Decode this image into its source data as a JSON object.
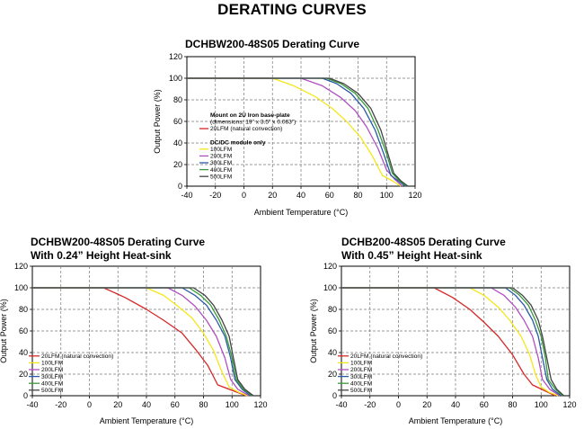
{
  "page": {
    "title": "DERATING CURVES"
  },
  "chart_data": [
    {
      "type": "line",
      "title_lines": [
        "DCHBW200-48S05 Derating Curve"
      ],
      "xlabel": "Ambient Temperature (°C)",
      "ylabel": "Output Power (%)",
      "xlim": [
        -40,
        120
      ],
      "ylim": [
        0,
        120
      ],
      "xticks": [
        -40,
        -20,
        0,
        20,
        40,
        60,
        80,
        100,
        120
      ],
      "yticks": [
        0,
        20,
        40,
        60,
        80,
        100,
        120
      ],
      "grid": true,
      "legend_position": "inside-center",
      "legend_lines": [
        {
          "text": "Mount on 2U Iron base-plate",
          "bold": true
        },
        {
          "text": "(dimensions: 19\" x 3.5\" x 0.063\")",
          "bold": false
        },
        {
          "text": "20LFM (natural convection)",
          "bold": false,
          "series": 0
        },
        {
          "text": "",
          "bold": false
        },
        {
          "text": "DC/DC module only",
          "bold": true
        },
        {
          "text": "100LFM",
          "bold": false,
          "series": 1
        },
        {
          "text": "200LFM",
          "bold": false,
          "series": 2
        },
        {
          "text": "300LFM",
          "bold": false,
          "series": 3
        },
        {
          "text": "400LFM",
          "bold": false,
          "series": 4
        },
        {
          "text": "500LFM",
          "bold": false,
          "series": 5
        }
      ],
      "series": [
        {
          "name": "20LFM (natural convection)",
          "color": "#d62728",
          "points": [
            [
              -40,
              100
            ],
            [
              20,
              100
            ]
          ]
        },
        {
          "name": "100LFM",
          "color": "#f5e61a",
          "points": [
            [
              -40,
              100
            ],
            [
              20,
              100
            ],
            [
              35,
              93
            ],
            [
              50,
              83
            ],
            [
              62,
              72
            ],
            [
              72,
              60
            ],
            [
              82,
              45
            ],
            [
              90,
              28
            ],
            [
              97,
              10
            ],
            [
              104,
              5
            ],
            [
              110,
              0
            ]
          ]
        },
        {
          "name": "200LFM",
          "color": "#b04fc0",
          "points": [
            [
              -40,
              100
            ],
            [
              40,
              100
            ],
            [
              55,
              93
            ],
            [
              68,
              82
            ],
            [
              78,
              70
            ],
            [
              86,
              55
            ],
            [
              94,
              35
            ],
            [
              100,
              15
            ],
            [
              106,
              6
            ],
            [
              111,
              0
            ]
          ]
        },
        {
          "name": "300LFM",
          "color": "#2a5aa8",
          "points": [
            [
              -40,
              100
            ],
            [
              55,
              100
            ],
            [
              65,
              95
            ],
            [
              75,
              86
            ],
            [
              84,
              72
            ],
            [
              92,
              52
            ],
            [
              98,
              30
            ],
            [
              103,
              10
            ],
            [
              108,
              5
            ],
            [
              113,
              0
            ]
          ]
        },
        {
          "name": "400LFM",
          "color": "#3a9a3a",
          "points": [
            [
              -40,
              100
            ],
            [
              58,
              100
            ],
            [
              68,
              95
            ],
            [
              78,
              86
            ],
            [
              87,
              72
            ],
            [
              94,
              52
            ],
            [
              100,
              30
            ],
            [
              104,
              12
            ],
            [
              109,
              5
            ],
            [
              114,
              0
            ]
          ]
        },
        {
          "name": "500LFM",
          "color": "#444444",
          "points": [
            [
              -40,
              100
            ],
            [
              60,
              100
            ],
            [
              70,
              95
            ],
            [
              80,
              86
            ],
            [
              89,
              72
            ],
            [
              96,
              52
            ],
            [
              101,
              30
            ],
            [
              105,
              12
            ],
            [
              110,
              5
            ],
            [
              115,
              0
            ]
          ]
        }
      ]
    },
    {
      "type": "line",
      "title_lines": [
        "DCHBW200-48S05 Derating Curve",
        "With 0.24” Height Heat-sink"
      ],
      "xlabel": "Ambient Temperature (°C)",
      "ylabel": "Output Power (%)",
      "xlim": [
        -40,
        120
      ],
      "ylim": [
        0,
        120
      ],
      "xticks": [
        -40,
        -20,
        0,
        20,
        40,
        60,
        80,
        100,
        120
      ],
      "yticks": [
        0,
        20,
        40,
        60,
        80,
        100,
        120
      ],
      "grid": true,
      "legend_position": "bottom-left",
      "legend_lines": [
        {
          "text": "20LFM (natural convection)",
          "bold": false,
          "series": 0
        },
        {
          "text": "100LFM",
          "bold": false,
          "series": 1
        },
        {
          "text": "200LFM",
          "bold": false,
          "series": 2
        },
        {
          "text": "300LFM",
          "bold": false,
          "series": 3
        },
        {
          "text": "400LFM",
          "bold": false,
          "series": 4
        },
        {
          "text": "500LFM",
          "bold": false,
          "series": 5
        }
      ],
      "series": [
        {
          "name": "20LFM (natural convection)",
          "color": "#d62728",
          "points": [
            [
              -40,
              100
            ],
            [
              10,
              100
            ],
            [
              25,
              91
            ],
            [
              40,
              80
            ],
            [
              52,
              70
            ],
            [
              65,
              58
            ],
            [
              75,
              42
            ],
            [
              83,
              28
            ],
            [
              90,
              10
            ],
            [
              100,
              5
            ],
            [
              110,
              0
            ]
          ]
        },
        {
          "name": "100LFM",
          "color": "#f5e61a",
          "points": [
            [
              -40,
              100
            ],
            [
              40,
              100
            ],
            [
              52,
              93
            ],
            [
              62,
              83
            ],
            [
              72,
              72
            ],
            [
              80,
              58
            ],
            [
              87,
              42
            ],
            [
              93,
              22
            ],
            [
              98,
              8
            ],
            [
              105,
              3
            ],
            [
              111,
              0
            ]
          ]
        },
        {
          "name": "200LFM",
          "color": "#b04fc0",
          "points": [
            [
              -40,
              100
            ],
            [
              55,
              100
            ],
            [
              65,
              93
            ],
            [
              74,
              83
            ],
            [
              82,
              70
            ],
            [
              89,
              55
            ],
            [
              95,
              35
            ],
            [
              99,
              15
            ],
            [
              104,
              6
            ],
            [
              112,
              0
            ]
          ]
        },
        {
          "name": "300LFM",
          "color": "#2a5aa8",
          "points": [
            [
              -40,
              100
            ],
            [
              65,
              100
            ],
            [
              74,
              93
            ],
            [
              82,
              84
            ],
            [
              89,
              70
            ],
            [
              95,
              55
            ],
            [
              99,
              35
            ],
            [
              102,
              15
            ],
            [
              107,
              6
            ],
            [
              113,
              0
            ]
          ]
        },
        {
          "name": "400LFM",
          "color": "#3a9a3a",
          "points": [
            [
              -40,
              100
            ],
            [
              70,
              100
            ],
            [
              78,
              93
            ],
            [
              85,
              84
            ],
            [
              91,
              70
            ],
            [
              96,
              55
            ],
            [
              100,
              35
            ],
            [
              103,
              15
            ],
            [
              108,
              6
            ],
            [
              114,
              0
            ]
          ]
        },
        {
          "name": "500LFM",
          "color": "#444444",
          "points": [
            [
              -40,
              100
            ],
            [
              73,
              100
            ],
            [
              81,
              93
            ],
            [
              87,
              84
            ],
            [
              93,
              70
            ],
            [
              98,
              55
            ],
            [
              101,
              35
            ],
            [
              104,
              15
            ],
            [
              109,
              6
            ],
            [
              115,
              0
            ]
          ]
        }
      ]
    },
    {
      "type": "line",
      "title_lines": [
        "DCHB200-48S05 Derating Curve",
        "With 0.45” Height Heat-sink"
      ],
      "xlabel": "Ambient Temperature (°C)",
      "ylabel": "Output Power (%)",
      "xlim": [
        -40,
        120
      ],
      "ylim": [
        0,
        120
      ],
      "xticks": [
        -40,
        -20,
        0,
        20,
        40,
        60,
        80,
        100,
        120
      ],
      "yticks": [
        0,
        20,
        40,
        60,
        80,
        100,
        120
      ],
      "grid": true,
      "legend_position": "bottom-left",
      "legend_lines": [
        {
          "text": "20LFM (natural convection)",
          "bold": false,
          "series": 0
        },
        {
          "text": "100LFM",
          "bold": false,
          "series": 1
        },
        {
          "text": "200LFM",
          "bold": false,
          "series": 2
        },
        {
          "text": "300LFM",
          "bold": false,
          "series": 3
        },
        {
          "text": "400LFM",
          "bold": false,
          "series": 4
        },
        {
          "text": "500LFM",
          "bold": false,
          "series": 5
        }
      ],
      "series": [
        {
          "name": "20LFM (natural convection)",
          "color": "#d62728",
          "points": [
            [
              -40,
              100
            ],
            [
              25,
              100
            ],
            [
              38,
              91
            ],
            [
              50,
              80
            ],
            [
              60,
              68
            ],
            [
              70,
              55
            ],
            [
              80,
              38
            ],
            [
              88,
              20
            ],
            [
              94,
              10
            ],
            [
              102,
              5
            ],
            [
              110,
              0
            ]
          ]
        },
        {
          "name": "100LFM",
          "color": "#f5e61a",
          "points": [
            [
              -40,
              100
            ],
            [
              50,
              100
            ],
            [
              60,
              93
            ],
            [
              70,
              82
            ],
            [
              78,
              70
            ],
            [
              86,
              55
            ],
            [
              92,
              38
            ],
            [
              96,
              20
            ],
            [
              100,
              8
            ],
            [
              106,
              3
            ],
            [
              112,
              0
            ]
          ]
        },
        {
          "name": "200LFM",
          "color": "#b04fc0",
          "points": [
            [
              -40,
              100
            ],
            [
              65,
              100
            ],
            [
              74,
              93
            ],
            [
              82,
              82
            ],
            [
              88,
              70
            ],
            [
              94,
              55
            ],
            [
              98,
              35
            ],
            [
              101,
              15
            ],
            [
              106,
              6
            ],
            [
              113,
              0
            ]
          ]
        },
        {
          "name": "300LFM",
          "color": "#2a5aa8",
          "points": [
            [
              -40,
              100
            ],
            [
              75,
              100
            ],
            [
              82,
              93
            ],
            [
              88,
              84
            ],
            [
              94,
              70
            ],
            [
              98,
              55
            ],
            [
              101,
              35
            ],
            [
              104,
              15
            ],
            [
              108,
              6
            ],
            [
              114,
              0
            ]
          ]
        },
        {
          "name": "400LFM",
          "color": "#3a9a3a",
          "points": [
            [
              -40,
              100
            ],
            [
              78,
              100
            ],
            [
              85,
              93
            ],
            [
              91,
              84
            ],
            [
              96,
              70
            ],
            [
              100,
              55
            ],
            [
              103,
              35
            ],
            [
              105,
              15
            ],
            [
              110,
              6
            ],
            [
              115,
              0
            ]
          ]
        },
        {
          "name": "500LFM",
          "color": "#444444",
          "points": [
            [
              -40,
              100
            ],
            [
              80,
              100
            ],
            [
              87,
              93
            ],
            [
              93,
              84
            ],
            [
              98,
              70
            ],
            [
              101,
              55
            ],
            [
              104,
              35
            ],
            [
              107,
              15
            ],
            [
              111,
              6
            ],
            [
              116,
              0
            ]
          ]
        }
      ]
    }
  ]
}
